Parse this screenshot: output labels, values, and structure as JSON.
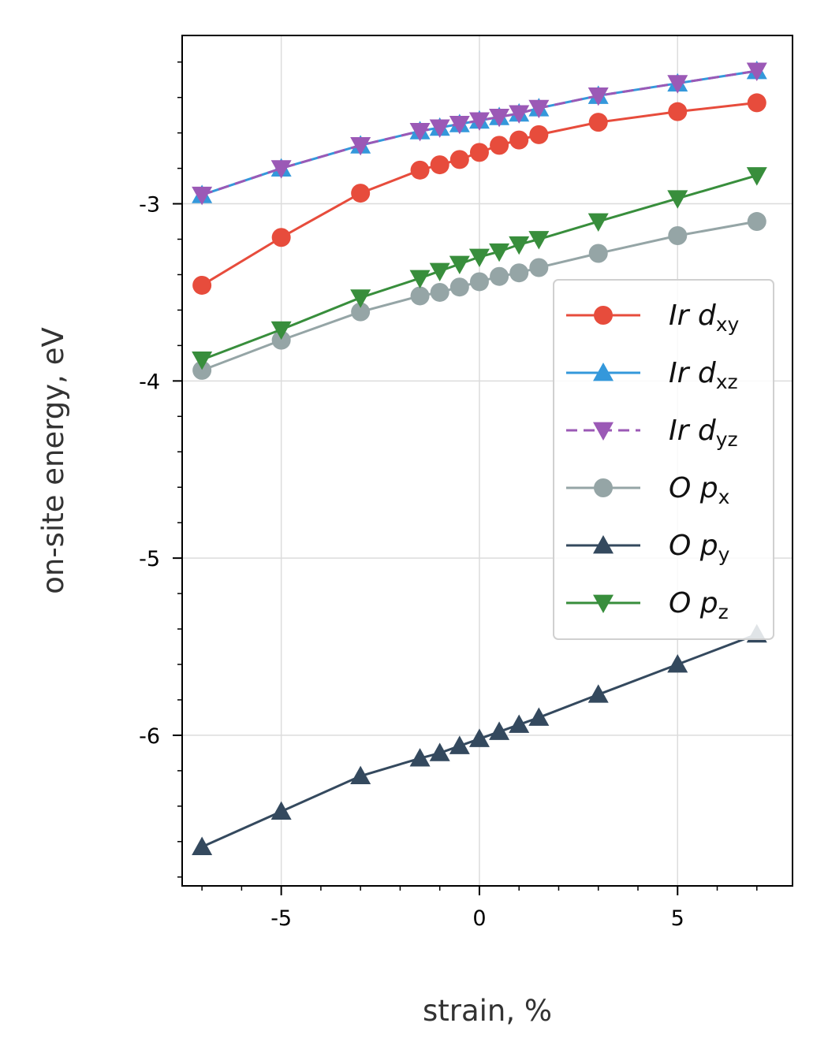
{
  "chart_data": {
    "type": "line",
    "xlabel": "strain, %",
    "ylabel": "on-site energy, eV",
    "xlim": [
      -7.5,
      7.9
    ],
    "ylim": [
      -6.85,
      -2.05
    ],
    "xticks": [
      -5,
      0,
      5
    ],
    "xtick_labels": [
      "-5",
      "0",
      "5"
    ],
    "yticks": [
      -3,
      -4,
      -5,
      -6
    ],
    "ytick_labels": [
      "-3",
      "-4",
      "-5",
      "-6"
    ],
    "grid": true,
    "legend_position": "center-right",
    "x": [
      -7,
      -5,
      -3,
      -1.5,
      -1,
      -0.5,
      0,
      0.5,
      1,
      1.5,
      3,
      5,
      7
    ],
    "series": [
      {
        "name": "Ir d_xy",
        "legend_main": "Ir d",
        "legend_sub": "xy",
        "color": "#e74c3c",
        "marker": "circle",
        "linestyle": "solid",
        "values": [
          -3.46,
          -3.19,
          -2.94,
          -2.81,
          -2.78,
          -2.75,
          -2.71,
          -2.67,
          -2.64,
          -2.61,
          -2.54,
          -2.48,
          -2.43
        ]
      },
      {
        "name": "Ir d_xz",
        "legend_main": "Ir d",
        "legend_sub": "xz",
        "color": "#3498db",
        "marker": "triangle-up",
        "linestyle": "solid",
        "values": [
          -2.95,
          -2.8,
          -2.67,
          -2.59,
          -2.57,
          -2.55,
          -2.53,
          -2.51,
          -2.49,
          -2.46,
          -2.39,
          -2.32,
          -2.25
        ]
      },
      {
        "name": "Ir d_yz",
        "legend_main": "Ir d",
        "legend_sub": "yz",
        "color": "#9b59b6",
        "marker": "triangle-down",
        "linestyle": "dashed",
        "values": [
          -2.95,
          -2.8,
          -2.67,
          -2.59,
          -2.57,
          -2.55,
          -2.53,
          -2.51,
          -2.49,
          -2.46,
          -2.39,
          -2.32,
          -2.25
        ]
      },
      {
        "name": "O p_x",
        "legend_main": "O p",
        "legend_sub": "x",
        "color": "#95a5a6",
        "marker": "circle",
        "linestyle": "solid",
        "values": [
          -3.94,
          -3.77,
          -3.61,
          -3.52,
          -3.5,
          -3.47,
          -3.44,
          -3.41,
          -3.39,
          -3.36,
          -3.28,
          -3.18,
          -3.1
        ]
      },
      {
        "name": "O p_y",
        "legend_main": "O p",
        "legend_sub": "y",
        "color": "#34495e",
        "marker": "triangle-up",
        "linestyle": "solid",
        "values": [
          -6.63,
          -6.43,
          -6.23,
          -6.13,
          -6.1,
          -6.06,
          -6.02,
          -5.98,
          -5.94,
          -5.9,
          -5.77,
          -5.6,
          -5.43
        ]
      },
      {
        "name": "O p_z",
        "legend_main": "O p",
        "legend_sub": "z",
        "color": "#388e3c",
        "marker": "triangle-down",
        "linestyle": "solid",
        "values": [
          -3.88,
          -3.71,
          -3.53,
          -3.42,
          -3.38,
          -3.34,
          -3.3,
          -3.27,
          -3.23,
          -3.2,
          -3.1,
          -2.97,
          -2.84
        ]
      }
    ]
  }
}
